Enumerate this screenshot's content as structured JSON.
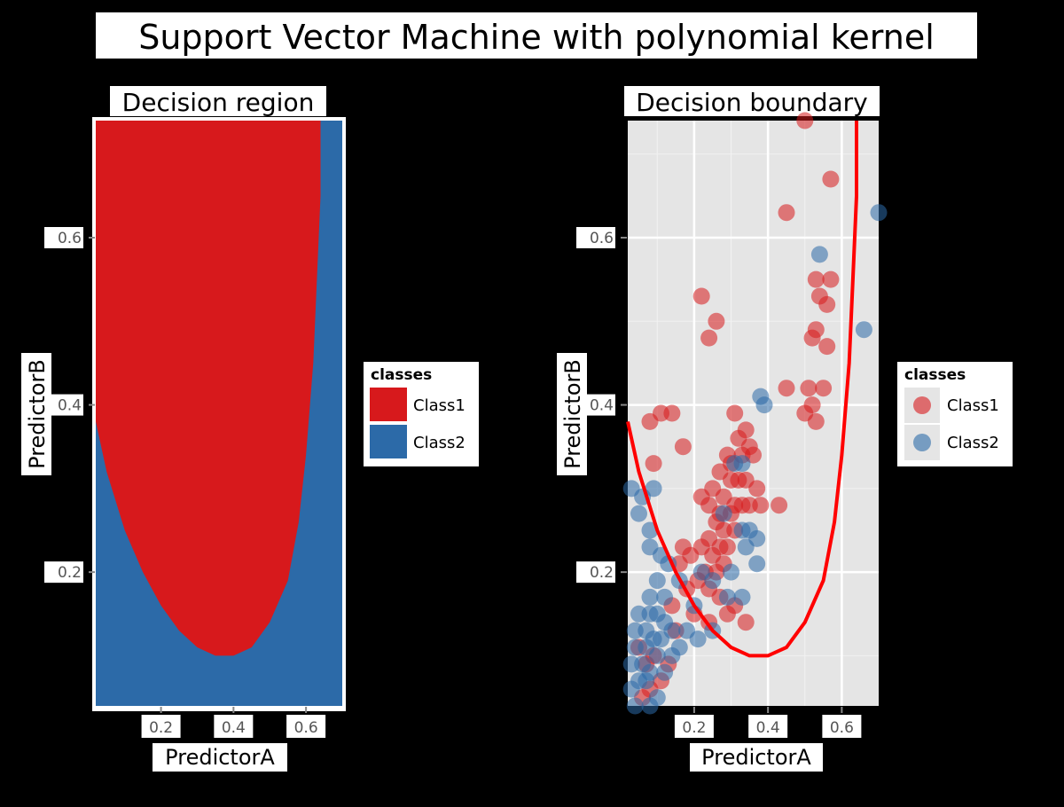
{
  "title": "Support Vector Machine with polynomial kernel",
  "colors": {
    "class1": "#D7191C",
    "class2": "#2C6AA8",
    "panel_bg": "#E5E5E5",
    "grid": "#FFFFFF",
    "boundary": "#FF0000",
    "text_bg": "#FFFFFF"
  },
  "chart_data": [
    {
      "type": "heatmap",
      "title": "Decision region",
      "xlabel": "PredictorA",
      "ylabel": "PredictorB",
      "xlim": [
        0.02,
        0.7
      ],
      "ylim": [
        0.04,
        0.74
      ],
      "x_ticks": [
        0.2,
        0.4,
        0.6
      ],
      "y_ticks": [
        0.2,
        0.4,
        0.6
      ],
      "x_tick_labels": [
        "0.2",
        "0.4",
        "0.6"
      ],
      "y_tick_labels": [
        "0.2",
        "0.4",
        "0.6"
      ],
      "region_boundary": [
        [
          0.02,
          0.38
        ],
        [
          0.05,
          0.32
        ],
        [
          0.1,
          0.25
        ],
        [
          0.15,
          0.2
        ],
        [
          0.2,
          0.16
        ],
        [
          0.25,
          0.13
        ],
        [
          0.3,
          0.11
        ],
        [
          0.35,
          0.1
        ],
        [
          0.4,
          0.1
        ],
        [
          0.45,
          0.11
        ],
        [
          0.5,
          0.14
        ],
        [
          0.55,
          0.19
        ],
        [
          0.58,
          0.26
        ],
        [
          0.6,
          0.34
        ],
        [
          0.62,
          0.45
        ],
        [
          0.63,
          0.55
        ],
        [
          0.64,
          0.65
        ],
        [
          0.64,
          0.74
        ]
      ],
      "legend": {
        "title": "classes",
        "entries": [
          "Class1",
          "Class2"
        ],
        "position": "right"
      }
    },
    {
      "type": "scatter",
      "title": "Decision boundary",
      "xlabel": "PredictorA",
      "ylabel": "PredictorB",
      "xlim": [
        0.02,
        0.7
      ],
      "ylim": [
        0.04,
        0.74
      ],
      "x_ticks": [
        0.2,
        0.4,
        0.6
      ],
      "y_ticks": [
        0.2,
        0.4,
        0.6
      ],
      "x_tick_labels": [
        "0.2",
        "0.4",
        "0.6"
      ],
      "y_tick_labels": [
        "0.2",
        "0.4",
        "0.6"
      ],
      "grid": true,
      "boundary": [
        [
          0.02,
          0.38
        ],
        [
          0.05,
          0.32
        ],
        [
          0.1,
          0.25
        ],
        [
          0.15,
          0.2
        ],
        [
          0.2,
          0.16
        ],
        [
          0.25,
          0.13
        ],
        [
          0.3,
          0.11
        ],
        [
          0.35,
          0.1
        ],
        [
          0.4,
          0.1
        ],
        [
          0.45,
          0.11
        ],
        [
          0.5,
          0.14
        ],
        [
          0.55,
          0.19
        ],
        [
          0.58,
          0.26
        ],
        [
          0.6,
          0.34
        ],
        [
          0.62,
          0.45
        ],
        [
          0.63,
          0.55
        ],
        [
          0.64,
          0.65
        ],
        [
          0.64,
          0.74
        ]
      ],
      "series": [
        {
          "name": "Class1",
          "points": [
            [
              0.5,
              0.74
            ],
            [
              0.57,
              0.67
            ],
            [
              0.45,
              0.63
            ],
            [
              0.53,
              0.55
            ],
            [
              0.57,
              0.55
            ],
            [
              0.54,
              0.53
            ],
            [
              0.56,
              0.52
            ],
            [
              0.22,
              0.53
            ],
            [
              0.26,
              0.5
            ],
            [
              0.24,
              0.48
            ],
            [
              0.53,
              0.49
            ],
            [
              0.52,
              0.48
            ],
            [
              0.56,
              0.47
            ],
            [
              0.45,
              0.42
            ],
            [
              0.51,
              0.42
            ],
            [
              0.55,
              0.42
            ],
            [
              0.52,
              0.4
            ],
            [
              0.5,
              0.39
            ],
            [
              0.53,
              0.38
            ],
            [
              0.11,
              0.39
            ],
            [
              0.14,
              0.39
            ],
            [
              0.08,
              0.38
            ],
            [
              0.31,
              0.39
            ],
            [
              0.34,
              0.37
            ],
            [
              0.32,
              0.36
            ],
            [
              0.35,
              0.35
            ],
            [
              0.17,
              0.35
            ],
            [
              0.09,
              0.33
            ],
            [
              0.29,
              0.34
            ],
            [
              0.33,
              0.34
            ],
            [
              0.36,
              0.34
            ],
            [
              0.3,
              0.33
            ],
            [
              0.27,
              0.32
            ],
            [
              0.3,
              0.31
            ],
            [
              0.32,
              0.31
            ],
            [
              0.34,
              0.31
            ],
            [
              0.37,
              0.3
            ],
            [
              0.25,
              0.3
            ],
            [
              0.28,
              0.29
            ],
            [
              0.31,
              0.28
            ],
            [
              0.33,
              0.28
            ],
            [
              0.22,
              0.29
            ],
            [
              0.24,
              0.28
            ],
            [
              0.27,
              0.27
            ],
            [
              0.3,
              0.27
            ],
            [
              0.35,
              0.28
            ],
            [
              0.38,
              0.28
            ],
            [
              0.43,
              0.28
            ],
            [
              0.26,
              0.26
            ],
            [
              0.28,
              0.25
            ],
            [
              0.31,
              0.25
            ],
            [
              0.24,
              0.24
            ],
            [
              0.27,
              0.23
            ],
            [
              0.29,
              0.23
            ],
            [
              0.22,
              0.23
            ],
            [
              0.25,
              0.22
            ],
            [
              0.28,
              0.21
            ],
            [
              0.26,
              0.2
            ],
            [
              0.23,
              0.2
            ],
            [
              0.17,
              0.23
            ],
            [
              0.19,
              0.22
            ],
            [
              0.16,
              0.21
            ],
            [
              0.21,
              0.19
            ],
            [
              0.18,
              0.18
            ],
            [
              0.24,
              0.18
            ],
            [
              0.27,
              0.17
            ],
            [
              0.31,
              0.16
            ],
            [
              0.29,
              0.15
            ],
            [
              0.34,
              0.14
            ],
            [
              0.14,
              0.16
            ],
            [
              0.2,
              0.15
            ],
            [
              0.24,
              0.14
            ],
            [
              0.15,
              0.13
            ],
            [
              0.05,
              0.11
            ],
            [
              0.09,
              0.1
            ],
            [
              0.13,
              0.09
            ],
            [
              0.07,
              0.09
            ],
            [
              0.11,
              0.07
            ],
            [
              0.08,
              0.06
            ],
            [
              0.06,
              0.05
            ]
          ]
        },
        {
          "name": "Class2",
          "points": [
            [
              0.7,
              0.63
            ],
            [
              0.54,
              0.58
            ],
            [
              0.66,
              0.49
            ],
            [
              0.38,
              0.41
            ],
            [
              0.39,
              0.4
            ],
            [
              0.31,
              0.33
            ],
            [
              0.33,
              0.33
            ],
            [
              0.03,
              0.3
            ],
            [
              0.06,
              0.29
            ],
            [
              0.09,
              0.3
            ],
            [
              0.05,
              0.27
            ],
            [
              0.08,
              0.25
            ],
            [
              0.28,
              0.27
            ],
            [
              0.33,
              0.25
            ],
            [
              0.35,
              0.25
            ],
            [
              0.37,
              0.24
            ],
            [
              0.34,
              0.23
            ],
            [
              0.08,
              0.23
            ],
            [
              0.11,
              0.22
            ],
            [
              0.13,
              0.21
            ],
            [
              0.16,
              0.19
            ],
            [
              0.1,
              0.19
            ],
            [
              0.12,
              0.17
            ],
            [
              0.08,
              0.17
            ],
            [
              0.05,
              0.15
            ],
            [
              0.08,
              0.15
            ],
            [
              0.1,
              0.15
            ],
            [
              0.12,
              0.14
            ],
            [
              0.14,
              0.13
            ],
            [
              0.04,
              0.13
            ],
            [
              0.07,
              0.13
            ],
            [
              0.09,
              0.12
            ],
            [
              0.11,
              0.12
            ],
            [
              0.04,
              0.11
            ],
            [
              0.07,
              0.11
            ],
            [
              0.1,
              0.1
            ],
            [
              0.14,
              0.1
            ],
            [
              0.16,
              0.11
            ],
            [
              0.03,
              0.09
            ],
            [
              0.06,
              0.09
            ],
            [
              0.08,
              0.08
            ],
            [
              0.12,
              0.08
            ],
            [
              0.05,
              0.07
            ],
            [
              0.03,
              0.06
            ],
            [
              0.07,
              0.07
            ],
            [
              0.1,
              0.05
            ],
            [
              0.04,
              0.04
            ],
            [
              0.08,
              0.04
            ],
            [
              0.22,
              0.2
            ],
            [
              0.25,
              0.19
            ],
            [
              0.3,
              0.2
            ],
            [
              0.2,
              0.16
            ],
            [
              0.37,
              0.21
            ],
            [
              0.29,
              0.17
            ],
            [
              0.33,
              0.17
            ],
            [
              0.21,
              0.12
            ],
            [
              0.25,
              0.13
            ],
            [
              0.18,
              0.13
            ]
          ]
        }
      ],
      "legend": {
        "title": "classes",
        "entries": [
          "Class1",
          "Class2"
        ],
        "position": "right"
      }
    }
  ]
}
